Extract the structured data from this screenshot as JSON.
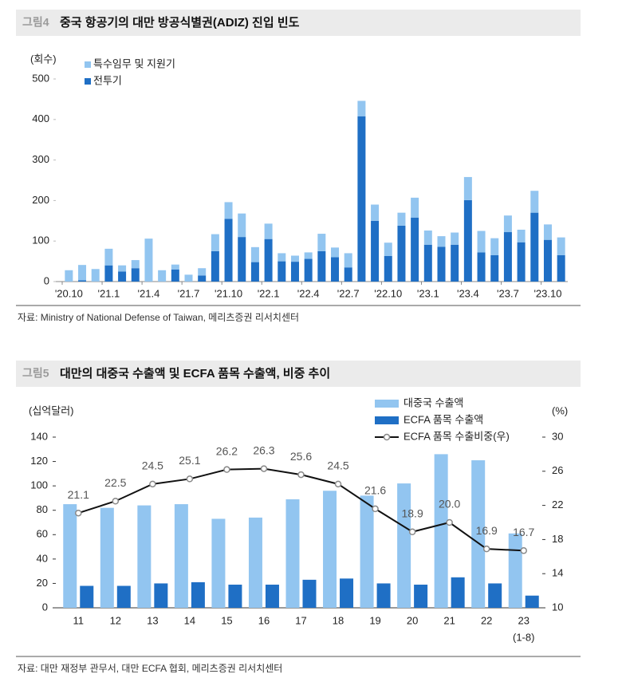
{
  "chart_data": [
    {
      "type": "bar",
      "stacked": true,
      "figure_label": "그림4",
      "title": "중국 항공기의 대만 방공식별권(ADIZ) 진입 빈도",
      "y_label": "(회수)",
      "source": "자료: Ministry of National Defense of Taiwan, 메리츠증권 리서치센터",
      "categories": [
        "'20.10",
        null,
        null,
        "'21.1",
        null,
        null,
        "'21.4",
        null,
        null,
        "'21.7",
        null,
        null,
        "'21.10",
        null,
        null,
        "'22.1",
        null,
        null,
        "'22.4",
        null,
        null,
        "'22.7",
        null,
        null,
        "'22.10",
        null,
        null,
        "'23.1",
        null,
        null,
        "'23.4",
        null,
        null,
        "'23.7",
        null,
        null,
        "'23.10",
        null
      ],
      "series": [
        {
          "name": "특수임무 및 지원기",
          "color": "#92c5f0",
          "values": [
            28,
            38,
            31,
            41,
            15,
            20,
            106,
            28,
            12,
            17,
            18,
            42,
            41,
            58,
            37,
            38,
            20,
            15,
            16,
            43,
            24,
            35,
            38,
            40,
            33,
            32,
            49,
            35,
            26,
            30,
            57,
            53,
            42,
            41,
            31,
            54,
            38,
            44
          ]
        },
        {
          "name": "전투기",
          "color": "#1f6fc5",
          "values": [
            0,
            3,
            0,
            40,
            25,
            33,
            0,
            0,
            30,
            0,
            15,
            75,
            155,
            110,
            48,
            105,
            50,
            49,
            56,
            75,
            60,
            35,
            408,
            150,
            63,
            138,
            158,
            91,
            86,
            91,
            201,
            72,
            65,
            122,
            97,
            170,
            103,
            65
          ]
        }
      ],
      "ylim": [
        0,
        500
      ],
      "yticks": [
        0,
        100,
        200,
        300,
        400,
        500
      ],
      "legend": "top-left"
    },
    {
      "type": "bar",
      "figure_label": "그림5",
      "title": "대만의 대중국 수출액 및 ECFA 품목 수출액, 비중 추이",
      "y_label": "(십억달러)",
      "y2_label": "(%)",
      "source": "자료: 대만 재정부 관무서, 대만 ECFA 협회, 메리츠증권 리서치센터",
      "categories": [
        "11",
        "12",
        "13",
        "14",
        "15",
        "16",
        "17",
        "18",
        "19",
        "20",
        "21",
        "22",
        "23"
      ],
      "category_note": "(1-8)",
      "series": [
        {
          "name": "대중국 수출액",
          "type": "bar",
          "color": "#92c5f0",
          "values": [
            85,
            82,
            84,
            85,
            73,
            74,
            89,
            96,
            92,
            102,
            126,
            121,
            61
          ]
        },
        {
          "name": "ECFA 품목 수출액",
          "type": "bar",
          "color": "#1f6fc5",
          "values": [
            18,
            18,
            20,
            21,
            19,
            19,
            23,
            24,
            20,
            19,
            25,
            20,
            10
          ]
        },
        {
          "name": "ECFA 품목 수출비중(우)",
          "type": "line",
          "axis": "y2",
          "color": "#111111",
          "marker_color": "#888888",
          "values": [
            21.1,
            22.5,
            24.5,
            25.1,
            26.2,
            26.3,
            25.6,
            24.5,
            21.6,
            18.9,
            20.0,
            16.9,
            16.7
          ],
          "value_labels": [
            "21.1",
            "22.5",
            "24.5",
            "25.1",
            "26.2",
            "26.3",
            "25.6",
            "24.5",
            "21.6",
            "18.9",
            "20.0",
            "16.9",
            "16.7"
          ]
        }
      ],
      "ylim": [
        0,
        140
      ],
      "yticks": [
        0,
        20,
        40,
        60,
        80,
        100,
        120,
        140
      ],
      "y2lim": [
        10,
        30
      ],
      "y2ticks": [
        10,
        14,
        18,
        22,
        26,
        30
      ],
      "legend": "top-right"
    }
  ]
}
